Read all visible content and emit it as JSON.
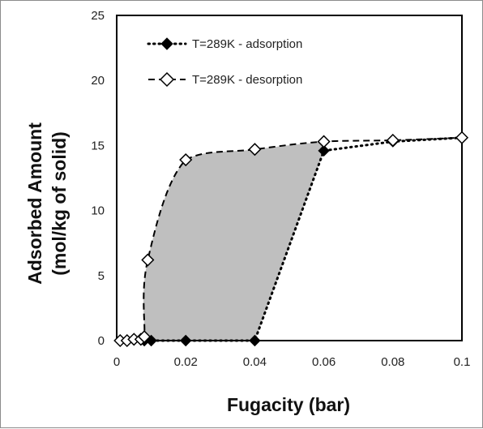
{
  "chart_data": {
    "type": "line",
    "title": "",
    "xlabel": "Fugacity (bar)",
    "ylabel_line1": "Adsorbed Amount",
    "ylabel_line2": "(mol/kg of solid)",
    "xlim": [
      0,
      0.1
    ],
    "ylim": [
      0,
      25
    ],
    "x_ticks": [
      "0",
      "0.02",
      "0.04",
      "0.06",
      "0.08",
      "0.1"
    ],
    "y_ticks": [
      "0",
      "5",
      "10",
      "15",
      "20",
      "25"
    ],
    "grid": false,
    "legend_position": "top-left",
    "hysteresis_fill_color": "#bfbfbf",
    "series": [
      {
        "name": "T=289K - adsorption",
        "line_style": "dotted",
        "marker": "filled-diamond",
        "color": "#000000",
        "x": [
          0.001,
          0.008,
          0.01,
          0.02,
          0.04,
          0.06,
          0.08,
          0.1
        ],
        "y": [
          0,
          0,
          0,
          0,
          0,
          14.6,
          15.3,
          15.6
        ]
      },
      {
        "name": "T=289K - desorption",
        "line_style": "dashed",
        "marker": "open-diamond",
        "color": "#000000",
        "x": [
          0.001,
          0.003,
          0.005,
          0.007,
          0.008,
          0.009,
          0.02,
          0.04,
          0.06,
          0.08,
          0.1
        ],
        "y": [
          0,
          0,
          0.1,
          0.1,
          0.3,
          6.2,
          13.9,
          14.7,
          15.3,
          15.4,
          15.6
        ]
      }
    ]
  }
}
